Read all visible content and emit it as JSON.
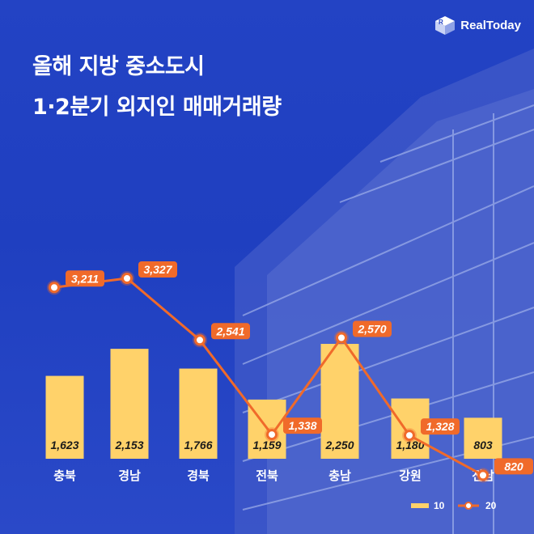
{
  "title_line1": "올해 지방 중소도시",
  "title_line2": "1·2분기 외지인 매매거래량",
  "brand": {
    "name": "RealToday",
    "logo_icon": "cube-logo-icon"
  },
  "colors": {
    "bar": "#ffd26a",
    "line": "#f06a2a",
    "background": "#2343c4"
  },
  "chart_data": {
    "type": "bar",
    "categories": [
      "충북",
      "경남",
      "경북",
      "전북",
      "충남",
      "강원",
      "전남"
    ],
    "series": [
      {
        "name": "10",
        "type": "bar",
        "values": [
          1623,
          2153,
          1766,
          1159,
          2250,
          1180,
          803
        ],
        "labels": [
          "1,623",
          "2,153",
          "1,766",
          "1,159",
          "2,250",
          "1,180",
          "803"
        ]
      },
      {
        "name": "20",
        "type": "line",
        "values": [
          3211,
          3327,
          2541,
          1338,
          2570,
          1328,
          820
        ],
        "labels": [
          "3,211",
          "3,327",
          "2,541",
          "1,338",
          "2,570",
          "1,328",
          "820"
        ]
      }
    ],
    "legend_position": "bottom-right",
    "grid": false
  }
}
